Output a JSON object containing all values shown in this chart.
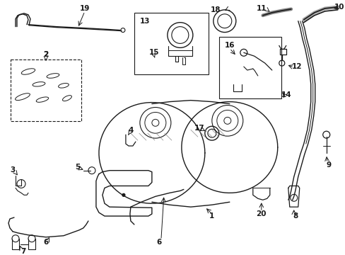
{
  "bg_color": "#ffffff",
  "line_color": "#1a1a1a",
  "fig_width": 4.89,
  "fig_height": 3.6,
  "dpi": 100,
  "fs": 7.5,
  "lw": 0.9
}
